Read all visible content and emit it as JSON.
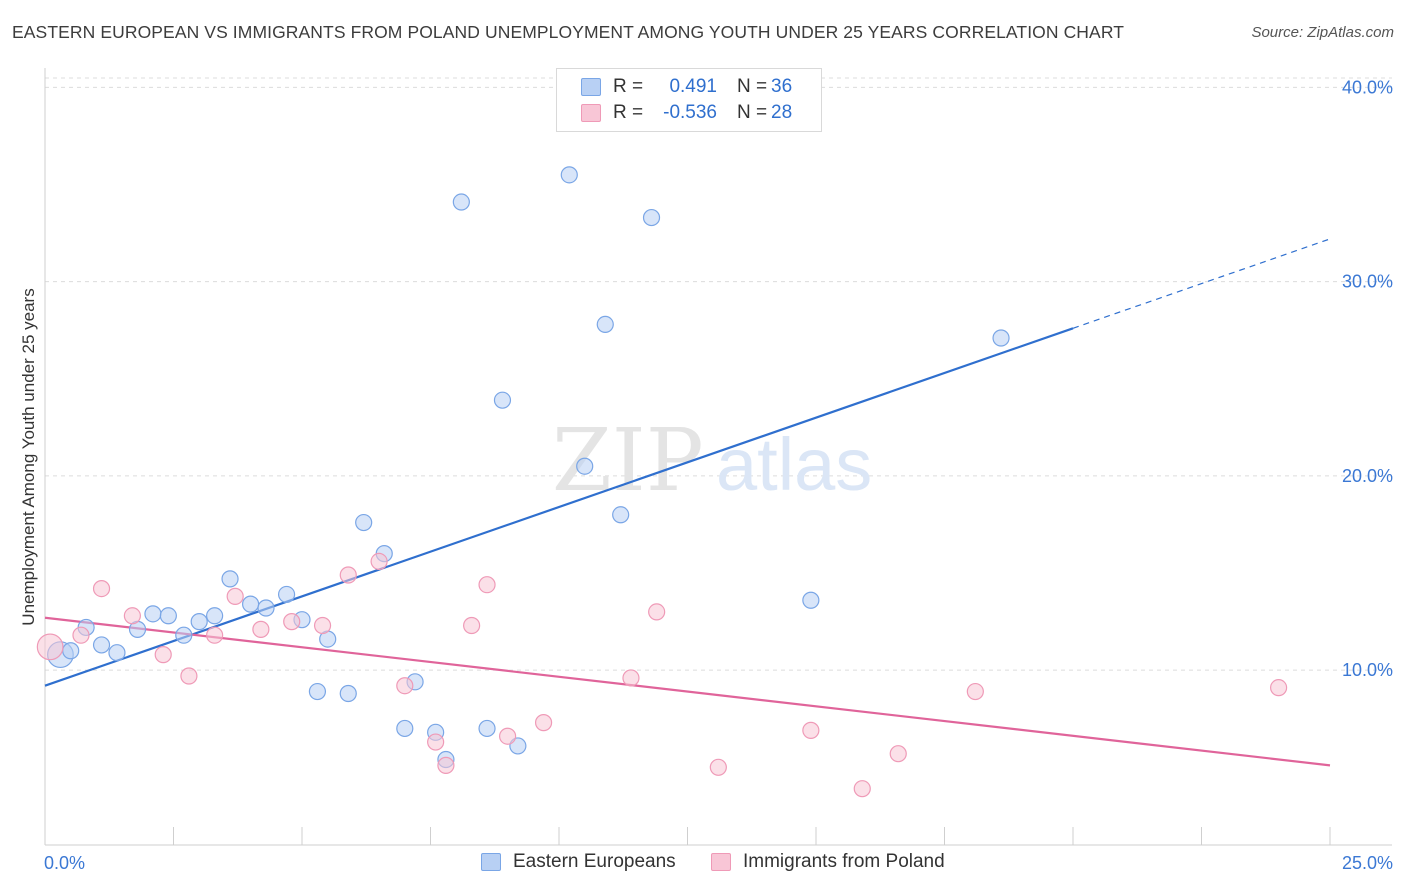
{
  "title": "EASTERN EUROPEAN VS IMMIGRANTS FROM POLAND UNEMPLOYMENT AMONG YOUTH UNDER 25 YEARS CORRELATION CHART",
  "source": "Source: ZipAtlas.com",
  "watermark": {
    "zip": "ZIP",
    "atlas": "atlas"
  },
  "legend": {
    "r_label": "R =",
    "n_label": "N =",
    "series": [
      {
        "name": "Eastern Europeans",
        "r": "0.491",
        "n": "36"
      },
      {
        "name": "Immigrants from Poland",
        "r": "-0.536",
        "n": "28"
      }
    ]
  },
  "colors": {
    "blue_fill": "#b8d0f4",
    "blue_stroke": "#7aa6e6",
    "blue_line": "#2f6fce",
    "pink_fill": "#f8c6d6",
    "pink_stroke": "#ef9ab7",
    "pink_line": "#e0649a",
    "axis_text": "#3b78d4",
    "grid": "#dcdcdc"
  },
  "chart_data": {
    "type": "scatter",
    "title": "EASTERN EUROPEAN VS IMMIGRANTS FROM POLAND UNEMPLOYMENT AMONG YOUTH UNDER 25 YEARS CORRELATION CHART",
    "xlabel": "",
    "ylabel": "Unemployment Among Youth under 25 years",
    "xlim": [
      0,
      25
    ],
    "ylim": [
      1,
      41
    ],
    "x_tick_labels": [
      "0.0%",
      "25.0%"
    ],
    "y_ticks": [
      10,
      20,
      30,
      40
    ],
    "y_tick_labels": [
      "10.0%",
      "20.0%",
      "30.0%",
      "40.0%"
    ],
    "grid": true,
    "legend_position": "top-center",
    "series": [
      {
        "name": "Eastern Europeans",
        "r": 0.491,
        "n": 36,
        "trend": {
          "x": [
            0,
            20
          ],
          "y": [
            9.2,
            27.6
          ],
          "dashed_to": [
            25,
            32.2
          ]
        },
        "points": [
          [
            0.3,
            10.8,
            1.6
          ],
          [
            0.8,
            12.2,
            1
          ],
          [
            1.1,
            11.3,
            1
          ],
          [
            1.4,
            10.9,
            1
          ],
          [
            1.8,
            12.1,
            1
          ],
          [
            2.1,
            12.9,
            1
          ],
          [
            2.4,
            12.8,
            1
          ],
          [
            2.7,
            11.8,
            1
          ],
          [
            3.0,
            12.5,
            1
          ],
          [
            3.3,
            12.8,
            1
          ],
          [
            3.6,
            14.7,
            1
          ],
          [
            4.0,
            13.4,
            1
          ],
          [
            4.3,
            13.2,
            1
          ],
          [
            4.7,
            13.9,
            1
          ],
          [
            5.0,
            12.6,
            1
          ],
          [
            5.3,
            8.9,
            1
          ],
          [
            5.5,
            11.6,
            1
          ],
          [
            5.9,
            8.8,
            1
          ],
          [
            6.2,
            17.6,
            1
          ],
          [
            6.6,
            16.0,
            1
          ],
          [
            7.0,
            7.0,
            1
          ],
          [
            7.2,
            9.4,
            1
          ],
          [
            7.6,
            6.8,
            1
          ],
          [
            7.8,
            5.4,
            1
          ],
          [
            8.1,
            34.1,
            1
          ],
          [
            8.6,
            7.0,
            1
          ],
          [
            8.9,
            23.9,
            1
          ],
          [
            9.2,
            6.1,
            1
          ],
          [
            10.2,
            35.5,
            1
          ],
          [
            10.5,
            20.5,
            1
          ],
          [
            10.9,
            27.8,
            1
          ],
          [
            11.2,
            18.0,
            1
          ],
          [
            11.8,
            33.3,
            1
          ],
          [
            14.9,
            13.6,
            1
          ],
          [
            18.6,
            27.1,
            1
          ],
          [
            0.5,
            11.0,
            1
          ]
        ]
      },
      {
        "name": "Immigrants from Poland",
        "r": -0.536,
        "n": 28,
        "trend": {
          "x": [
            0,
            25
          ],
          "y": [
            12.7,
            5.1
          ]
        },
        "points": [
          [
            0.1,
            11.2,
            1.6
          ],
          [
            0.7,
            11.8,
            1
          ],
          [
            1.1,
            14.2,
            1
          ],
          [
            1.7,
            12.8,
            1
          ],
          [
            2.3,
            10.8,
            1
          ],
          [
            2.8,
            9.7,
            1
          ],
          [
            3.3,
            11.8,
            1
          ],
          [
            3.7,
            13.8,
            1
          ],
          [
            4.2,
            12.1,
            1
          ],
          [
            4.8,
            12.5,
            1
          ],
          [
            5.4,
            12.3,
            1
          ],
          [
            5.9,
            14.9,
            1
          ],
          [
            6.5,
            15.6,
            1
          ],
          [
            7.0,
            9.2,
            1
          ],
          [
            7.6,
            6.3,
            1
          ],
          [
            7.8,
            5.1,
            1
          ],
          [
            8.3,
            12.3,
            1
          ],
          [
            8.6,
            14.4,
            1
          ],
          [
            9.0,
            6.6,
            1
          ],
          [
            9.7,
            7.3,
            1
          ],
          [
            11.4,
            9.6,
            1
          ],
          [
            11.9,
            13.0,
            1
          ],
          [
            13.1,
            5.0,
            1
          ],
          [
            14.9,
            6.9,
            1
          ],
          [
            15.9,
            3.9,
            1
          ],
          [
            16.6,
            5.7,
            1
          ],
          [
            18.1,
            8.9,
            1
          ],
          [
            24.0,
            9.1,
            1
          ]
        ]
      }
    ]
  }
}
